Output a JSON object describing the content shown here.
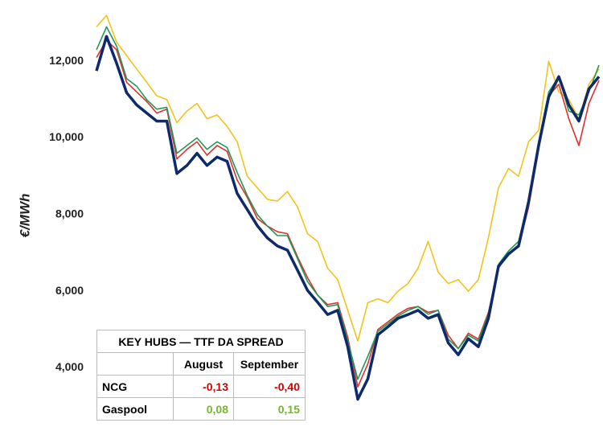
{
  "chart_data": {
    "type": "line",
    "y_label": "€/MWh",
    "ylim": [
      2350,
      13600
    ],
    "yticks": [
      {
        "value": 4000,
        "label": "4,000"
      },
      {
        "value": 6000,
        "label": "6,000"
      },
      {
        "value": 8000,
        "label": "8,000"
      },
      {
        "value": 10000,
        "label": "10,000"
      },
      {
        "value": 12000,
        "label": "12,000"
      }
    ],
    "series": [
      {
        "color": "#f2c31b",
        "values": [
          12900,
          13200,
          12500,
          12150,
          11800,
          11450,
          11100,
          11000,
          10400,
          10700,
          10900,
          10500,
          10600,
          10300,
          9900,
          9000,
          8700,
          8400,
          8350,
          8600,
          8200,
          7500,
          7300,
          6600,
          6300,
          5500,
          4700,
          5700,
          5800,
          5700,
          6000,
          6200,
          6600,
          7300,
          6500,
          6200,
          6300,
          6000,
          6300,
          7400,
          8700,
          9200,
          9000,
          9900,
          10200,
          12000,
          11200,
          11000,
          10500,
          11400,
          11800
        ]
      },
      {
        "color": "#e0302c",
        "values": [
          12100,
          12550,
          12300,
          11450,
          11200,
          10950,
          10650,
          10750,
          9450,
          9700,
          9900,
          9550,
          9800,
          9650,
          8900,
          8450,
          7900,
          7700,
          7550,
          7500,
          6900,
          6350,
          5900,
          5650,
          5700,
          4800,
          3500,
          4100,
          5000,
          5200,
          5400,
          5550,
          5600,
          5450,
          5500,
          4850,
          4500,
          4900,
          4750,
          5450,
          6600,
          7000,
          7150,
          8200,
          9700,
          11100,
          11400,
          10500,
          9800,
          10900,
          11500
        ]
      },
      {
        "color": "#1e9a58",
        "values": [
          12300,
          12900,
          12400,
          11550,
          11350,
          11000,
          10750,
          10800,
          9600,
          9800,
          10000,
          9700,
          9900,
          9750,
          9100,
          8500,
          8000,
          7700,
          7450,
          7450,
          6850,
          6250,
          5900,
          5600,
          5650,
          4700,
          3700,
          4300,
          4950,
          5150,
          5350,
          5500,
          5600,
          5400,
          5500,
          4750,
          4500,
          4850,
          4700,
          5400,
          6700,
          7050,
          7300,
          8400,
          9900,
          11200,
          11600,
          10700,
          10600,
          11200,
          11900
        ]
      },
      {
        "color": "#0d2a6b",
        "values": [
          11750,
          12650,
          11950,
          11180,
          10860,
          10650,
          10440,
          10440,
          9070,
          9280,
          9600,
          9280,
          9500,
          9390,
          8550,
          8130,
          7710,
          7390,
          7180,
          7070,
          6550,
          6020,
          5710,
          5390,
          5500,
          4550,
          3180,
          3710,
          4860,
          5070,
          5290,
          5390,
          5500,
          5290,
          5390,
          4650,
          4340,
          4760,
          4550,
          5290,
          6650,
          6970,
          7180,
          8340,
          9810,
          11070,
          11600,
          10860,
          10440,
          11280,
          11600
        ]
      }
    ]
  },
  "table": {
    "title": "KEY HUBS — TTF DA SPREAD",
    "columns": [
      "August",
      "September"
    ],
    "rows": [
      [
        "NCG",
        "-0,13",
        "-0,40"
      ],
      [
        "Gaspool",
        "0,08",
        "0,15"
      ]
    ],
    "row_colors": [
      "#d40000",
      "#74b72e"
    ]
  }
}
